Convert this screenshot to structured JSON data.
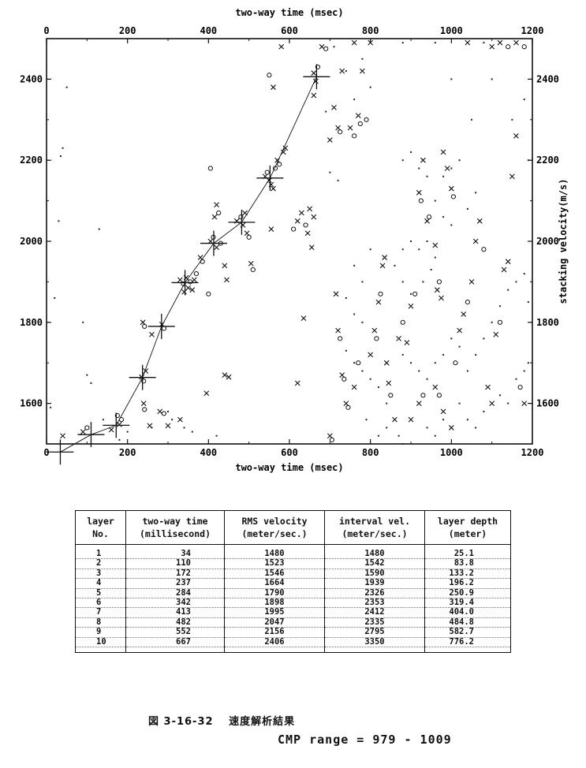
{
  "chart_data": {
    "type": "scatter",
    "xlabel_top": "two-way time (msec)",
    "xlabel_bottom": "two-way time (msec)",
    "ylabel_right": "stacking velocity(m/s)",
    "xlim": [
      0,
      1200
    ],
    "ylim": [
      1500,
      2500
    ],
    "xticks": [
      "0",
      "200",
      "400",
      "600",
      "800",
      "1000",
      "1200"
    ],
    "yticks_left": [
      "1600",
      "1800",
      "2000",
      "2200",
      "2400"
    ],
    "yticks_right": [
      "1600",
      "1800",
      "2000",
      "2200",
      "2400"
    ],
    "picks": {
      "x": [
        34,
        110,
        172,
        237,
        284,
        342,
        413,
        482,
        552,
        667
      ],
      "y": [
        1480,
        1523,
        1546,
        1664,
        1790,
        1898,
        1995,
        2047,
        2156,
        2406
      ]
    },
    "peaks": [
      {
        "x": 180,
        "y": 1548,
        "m": "x"
      },
      {
        "x": 175,
        "y": 1570,
        "m": "o"
      },
      {
        "x": 160,
        "y": 1535,
        "m": "x"
      },
      {
        "x": 185,
        "y": 1560,
        "m": "o"
      },
      {
        "x": 235,
        "y": 1665,
        "m": "x"
      },
      {
        "x": 240,
        "y": 1655,
        "m": "o"
      },
      {
        "x": 245,
        "y": 1680,
        "m": "x"
      },
      {
        "x": 240,
        "y": 1600,
        "m": "x"
      },
      {
        "x": 242,
        "y": 1585,
        "m": "o"
      },
      {
        "x": 255,
        "y": 1545,
        "m": "x"
      },
      {
        "x": 238,
        "y": 1800,
        "m": "x"
      },
      {
        "x": 242,
        "y": 1790,
        "m": "o"
      },
      {
        "x": 260,
        "y": 1770,
        "m": "x"
      },
      {
        "x": 285,
        "y": 1795,
        "m": "x"
      },
      {
        "x": 290,
        "y": 1785,
        "m": "o"
      },
      {
        "x": 280,
        "y": 1580,
        "m": "x"
      },
      {
        "x": 290,
        "y": 1575,
        "m": "o"
      },
      {
        "x": 300,
        "y": 1545,
        "m": "x"
      },
      {
        "x": 330,
        "y": 1905,
        "m": "x"
      },
      {
        "x": 338,
        "y": 1895,
        "m": "o"
      },
      {
        "x": 345,
        "y": 1910,
        "m": "x"
      },
      {
        "x": 350,
        "y": 1885,
        "m": "x"
      },
      {
        "x": 355,
        "y": 1900,
        "m": "o"
      },
      {
        "x": 365,
        "y": 1905,
        "m": "x"
      },
      {
        "x": 370,
        "y": 1920,
        "m": "o"
      },
      {
        "x": 380,
        "y": 1960,
        "m": "x"
      },
      {
        "x": 385,
        "y": 1950,
        "m": "o"
      },
      {
        "x": 340,
        "y": 1875,
        "m": "x"
      },
      {
        "x": 360,
        "y": 1880,
        "m": "x"
      },
      {
        "x": 400,
        "y": 1870,
        "m": "o"
      },
      {
        "x": 330,
        "y": 1560,
        "m": "x"
      },
      {
        "x": 405,
        "y": 2000,
        "m": "x"
      },
      {
        "x": 412,
        "y": 2010,
        "m": "o"
      },
      {
        "x": 420,
        "y": 1985,
        "m": "x"
      },
      {
        "x": 415,
        "y": 2060,
        "m": "x"
      },
      {
        "x": 420,
        "y": 2090,
        "m": "x"
      },
      {
        "x": 425,
        "y": 2070,
        "m": "o"
      },
      {
        "x": 430,
        "y": 1995,
        "m": "o"
      },
      {
        "x": 440,
        "y": 1940,
        "m": "x"
      },
      {
        "x": 445,
        "y": 1905,
        "m": "x"
      },
      {
        "x": 405,
        "y": 2180,
        "m": "o"
      },
      {
        "x": 440,
        "y": 1670,
        "m": "x"
      },
      {
        "x": 450,
        "y": 1665,
        "m": "x"
      },
      {
        "x": 395,
        "y": 1625,
        "m": "x"
      },
      {
        "x": 470,
        "y": 2050,
        "m": "x"
      },
      {
        "x": 480,
        "y": 2060,
        "m": "o"
      },
      {
        "x": 485,
        "y": 2040,
        "m": "x"
      },
      {
        "x": 490,
        "y": 2070,
        "m": "x"
      },
      {
        "x": 495,
        "y": 2020,
        "m": "x"
      },
      {
        "x": 500,
        "y": 2010,
        "m": "o"
      },
      {
        "x": 505,
        "y": 1945,
        "m": "x"
      },
      {
        "x": 510,
        "y": 1930,
        "m": "o"
      },
      {
        "x": 540,
        "y": 2160,
        "m": "x"
      },
      {
        "x": 545,
        "y": 2170,
        "m": "o"
      },
      {
        "x": 550,
        "y": 2150,
        "m": "x"
      },
      {
        "x": 555,
        "y": 2140,
        "m": "x"
      },
      {
        "x": 560,
        "y": 2130,
        "m": "x"
      },
      {
        "x": 565,
        "y": 2180,
        "m": "o"
      },
      {
        "x": 570,
        "y": 2200,
        "m": "x"
      },
      {
        "x": 575,
        "y": 2190,
        "m": "o"
      },
      {
        "x": 585,
        "y": 2220,
        "m": "x"
      },
      {
        "x": 590,
        "y": 2230,
        "m": "x"
      },
      {
        "x": 550,
        "y": 2410,
        "m": "o"
      },
      {
        "x": 560,
        "y": 2380,
        "m": "x"
      },
      {
        "x": 580,
        "y": 2480,
        "m": "x"
      },
      {
        "x": 555,
        "y": 2030,
        "m": "x"
      },
      {
        "x": 620,
        "y": 2050,
        "m": "x"
      },
      {
        "x": 630,
        "y": 2070,
        "m": "x"
      },
      {
        "x": 640,
        "y": 2040,
        "m": "o"
      },
      {
        "x": 650,
        "y": 2080,
        "m": "x"
      },
      {
        "x": 660,
        "y": 2060,
        "m": "x"
      },
      {
        "x": 655,
        "y": 1985,
        "m": "x"
      },
      {
        "x": 645,
        "y": 2020,
        "m": "x"
      },
      {
        "x": 610,
        "y": 2030,
        "m": "o"
      },
      {
        "x": 660,
        "y": 2415,
        "m": "x"
      },
      {
        "x": 670,
        "y": 2430,
        "m": "o"
      },
      {
        "x": 665,
        "y": 2395,
        "m": "x"
      },
      {
        "x": 680,
        "y": 2480,
        "m": "x"
      },
      {
        "x": 690,
        "y": 2475,
        "m": "o"
      },
      {
        "x": 660,
        "y": 2360,
        "m": "x"
      },
      {
        "x": 710,
        "y": 2330,
        "m": "x"
      },
      {
        "x": 720,
        "y": 2280,
        "m": "x"
      },
      {
        "x": 725,
        "y": 2270,
        "m": "o"
      },
      {
        "x": 730,
        "y": 2420,
        "m": "x"
      },
      {
        "x": 760,
        "y": 2490,
        "m": "x"
      },
      {
        "x": 780,
        "y": 2420,
        "m": "x"
      },
      {
        "x": 790,
        "y": 2300,
        "m": "o"
      },
      {
        "x": 800,
        "y": 2490,
        "m": "x"
      },
      {
        "x": 700,
        "y": 2250,
        "m": "x"
      },
      {
        "x": 770,
        "y": 2310,
        "m": "x"
      },
      {
        "x": 775,
        "y": 2290,
        "m": "o"
      },
      {
        "x": 750,
        "y": 2280,
        "m": "x"
      },
      {
        "x": 760,
        "y": 2260,
        "m": "o"
      },
      {
        "x": 620,
        "y": 1650,
        "m": "x"
      },
      {
        "x": 635,
        "y": 1810,
        "m": "x"
      },
      {
        "x": 715,
        "y": 1870,
        "m": "x"
      },
      {
        "x": 720,
        "y": 1780,
        "m": "x"
      },
      {
        "x": 725,
        "y": 1760,
        "m": "o"
      },
      {
        "x": 730,
        "y": 1670,
        "m": "x"
      },
      {
        "x": 735,
        "y": 1660,
        "m": "o"
      },
      {
        "x": 740,
        "y": 1600,
        "m": "x"
      },
      {
        "x": 745,
        "y": 1590,
        "m": "o"
      },
      {
        "x": 700,
        "y": 1520,
        "m": "x"
      },
      {
        "x": 705,
        "y": 1510,
        "m": "o"
      },
      {
        "x": 760,
        "y": 1640,
        "m": "x"
      },
      {
        "x": 770,
        "y": 1700,
        "m": "o"
      },
      {
        "x": 800,
        "y": 1720,
        "m": "x"
      },
      {
        "x": 810,
        "y": 1780,
        "m": "x"
      },
      {
        "x": 815,
        "y": 1760,
        "m": "o"
      },
      {
        "x": 820,
        "y": 1850,
        "m": "x"
      },
      {
        "x": 825,
        "y": 1870,
        "m": "o"
      },
      {
        "x": 830,
        "y": 1940,
        "m": "x"
      },
      {
        "x": 835,
        "y": 1960,
        "m": "x"
      },
      {
        "x": 840,
        "y": 1700,
        "m": "x"
      },
      {
        "x": 845,
        "y": 1650,
        "m": "x"
      },
      {
        "x": 850,
        "y": 1620,
        "m": "o"
      },
      {
        "x": 860,
        "y": 1560,
        "m": "x"
      },
      {
        "x": 870,
        "y": 1760,
        "m": "x"
      },
      {
        "x": 880,
        "y": 1800,
        "m": "o"
      },
      {
        "x": 890,
        "y": 1750,
        "m": "x"
      },
      {
        "x": 900,
        "y": 1840,
        "m": "x"
      },
      {
        "x": 910,
        "y": 1870,
        "m": "o"
      },
      {
        "x": 900,
        "y": 1560,
        "m": "x"
      },
      {
        "x": 920,
        "y": 1600,
        "m": "x"
      },
      {
        "x": 930,
        "y": 1620,
        "m": "o"
      },
      {
        "x": 920,
        "y": 2120,
        "m": "x"
      },
      {
        "x": 925,
        "y": 2100,
        "m": "o"
      },
      {
        "x": 930,
        "y": 2200,
        "m": "x"
      },
      {
        "x": 940,
        "y": 2050,
        "m": "x"
      },
      {
        "x": 945,
        "y": 2060,
        "m": "o"
      },
      {
        "x": 960,
        "y": 1990,
        "m": "x"
      },
      {
        "x": 965,
        "y": 1880,
        "m": "x"
      },
      {
        "x": 970,
        "y": 1900,
        "m": "o"
      },
      {
        "x": 975,
        "y": 1860,
        "m": "x"
      },
      {
        "x": 980,
        "y": 2220,
        "m": "x"
      },
      {
        "x": 990,
        "y": 2180,
        "m": "x"
      },
      {
        "x": 1000,
        "y": 2130,
        "m": "x"
      },
      {
        "x": 1005,
        "y": 2110,
        "m": "o"
      },
      {
        "x": 960,
        "y": 1640,
        "m": "x"
      },
      {
        "x": 970,
        "y": 1620,
        "m": "o"
      },
      {
        "x": 980,
        "y": 1580,
        "m": "x"
      },
      {
        "x": 1000,
        "y": 1540,
        "m": "x"
      },
      {
        "x": 1010,
        "y": 1700,
        "m": "o"
      },
      {
        "x": 1020,
        "y": 1780,
        "m": "x"
      },
      {
        "x": 1030,
        "y": 1820,
        "m": "x"
      },
      {
        "x": 1040,
        "y": 1850,
        "m": "o"
      },
      {
        "x": 1050,
        "y": 1900,
        "m": "x"
      },
      {
        "x": 1060,
        "y": 2000,
        "m": "x"
      },
      {
        "x": 1070,
        "y": 2050,
        "m": "x"
      },
      {
        "x": 1080,
        "y": 1980,
        "m": "o"
      },
      {
        "x": 1090,
        "y": 1640,
        "m": "x"
      },
      {
        "x": 1100,
        "y": 1600,
        "m": "x"
      },
      {
        "x": 1110,
        "y": 1770,
        "m": "x"
      },
      {
        "x": 1120,
        "y": 1800,
        "m": "o"
      },
      {
        "x": 1130,
        "y": 1930,
        "m": "x"
      },
      {
        "x": 1140,
        "y": 1950,
        "m": "x"
      },
      {
        "x": 1150,
        "y": 2160,
        "m": "x"
      },
      {
        "x": 1160,
        "y": 2260,
        "m": "x"
      },
      {
        "x": 1170,
        "y": 1640,
        "m": "o"
      },
      {
        "x": 1180,
        "y": 1600,
        "m": "x"
      },
      {
        "x": 1100,
        "y": 2480,
        "m": "x"
      },
      {
        "x": 1120,
        "y": 2490,
        "m": "x"
      },
      {
        "x": 1140,
        "y": 2480,
        "m": "o"
      },
      {
        "x": 1160,
        "y": 2490,
        "m": "x"
      },
      {
        "x": 1180,
        "y": 2480,
        "m": "o"
      },
      {
        "x": 1040,
        "y": 2490,
        "m": "x"
      },
      {
        "x": 40,
        "y": 1520,
        "m": "x"
      },
      {
        "x": 90,
        "y": 1530,
        "m": "x"
      },
      {
        "x": 100,
        "y": 1540,
        "m": "o"
      }
    ],
    "dots": [
      [
        40,
        2230
      ],
      [
        35,
        2210
      ],
      [
        30,
        2050
      ],
      [
        50,
        2380
      ],
      [
        130,
        2030
      ],
      [
        90,
        1800
      ],
      [
        100,
        1670
      ],
      [
        110,
        1650
      ],
      [
        20,
        1860
      ],
      [
        10,
        1590
      ],
      [
        140,
        1560
      ],
      [
        300,
        1580
      ],
      [
        310,
        1560
      ],
      [
        340,
        1540
      ],
      [
        360,
        1530
      ],
      [
        420,
        1520
      ],
      [
        200,
        1530
      ],
      [
        180,
        1510
      ],
      [
        260,
        1540
      ],
      [
        710,
        2480
      ],
      [
        740,
        2420
      ],
      [
        780,
        2450
      ],
      [
        800,
        2380
      ],
      [
        760,
        2350
      ],
      [
        690,
        2320
      ],
      [
        720,
        2150
      ],
      [
        700,
        2170
      ],
      [
        760,
        1940
      ],
      [
        780,
        1900
      ],
      [
        800,
        1980
      ],
      [
        760,
        1820
      ],
      [
        780,
        1800
      ],
      [
        740,
        1860
      ],
      [
        740,
        1730
      ],
      [
        760,
        1700
      ],
      [
        780,
        1680
      ],
      [
        800,
        1660
      ],
      [
        820,
        1640
      ],
      [
        840,
        1600
      ],
      [
        790,
        1560
      ],
      [
        820,
        1520
      ],
      [
        840,
        1540
      ],
      [
        880,
        1500
      ],
      [
        870,
        1520
      ],
      [
        860,
        1940
      ],
      [
        880,
        1980
      ],
      [
        900,
        2000
      ],
      [
        920,
        1980
      ],
      [
        940,
        2000
      ],
      [
        880,
        1900
      ],
      [
        900,
        1870
      ],
      [
        930,
        1900
      ],
      [
        950,
        1930
      ],
      [
        960,
        1960
      ],
      [
        880,
        2200
      ],
      [
        900,
        2220
      ],
      [
        920,
        2180
      ],
      [
        940,
        2160
      ],
      [
        960,
        2100
      ],
      [
        980,
        2160
      ],
      [
        1000,
        2180
      ],
      [
        1020,
        2200
      ],
      [
        980,
        2060
      ],
      [
        1000,
        2040
      ],
      [
        1040,
        2080
      ],
      [
        1060,
        2120
      ],
      [
        880,
        1720
      ],
      [
        900,
        1700
      ],
      [
        920,
        1680
      ],
      [
        940,
        1660
      ],
      [
        960,
        1700
      ],
      [
        980,
        1720
      ],
      [
        1000,
        1760
      ],
      [
        1020,
        1740
      ],
      [
        1040,
        1680
      ],
      [
        1060,
        1720
      ],
      [
        1080,
        1760
      ],
      [
        1100,
        1800
      ],
      [
        1120,
        1840
      ],
      [
        1140,
        1880
      ],
      [
        1160,
        1900
      ],
      [
        1180,
        1920
      ],
      [
        1190,
        1850
      ],
      [
        940,
        1540
      ],
      [
        960,
        1520
      ],
      [
        980,
        1560
      ],
      [
        1020,
        1600
      ],
      [
        1040,
        1560
      ],
      [
        1060,
        1540
      ],
      [
        1080,
        1580
      ],
      [
        1120,
        1620
      ],
      [
        1140,
        1600
      ],
      [
        1160,
        1660
      ],
      [
        1180,
        1680
      ],
      [
        1190,
        1700
      ],
      [
        1000,
        2400
      ],
      [
        1050,
        2300
      ],
      [
        1100,
        2400
      ],
      [
        1150,
        2300
      ],
      [
        1190,
        2200
      ],
      [
        1180,
        2350
      ],
      [
        1080,
        2490
      ],
      [
        960,
        2490
      ],
      [
        880,
        2490
      ]
    ]
  },
  "table": {
    "headers": [
      {
        "l1": "layer",
        "l2": "No."
      },
      {
        "l1": "two-way time",
        "l2": "(millisecond)"
      },
      {
        "l1": "RMS velocity",
        "l2": "(meter/sec.)"
      },
      {
        "l1": "interval vel.",
        "l2": "(meter/sec.)"
      },
      {
        "l1": "layer depth",
        "l2": "(meter)"
      }
    ],
    "rows": [
      [
        "1",
        "34",
        "1480",
        "1480",
        "25.1"
      ],
      [
        "2",
        "110",
        "1523",
        "1542",
        "83.8"
      ],
      [
        "3",
        "172",
        "1546",
        "1590",
        "133.2"
      ],
      [
        "4",
        "237",
        "1664",
        "1939",
        "196.2"
      ],
      [
        "5",
        "284",
        "1790",
        "2326",
        "250.9"
      ],
      [
        "6",
        "342",
        "1898",
        "2353",
        "319.4"
      ],
      [
        "7",
        "413",
        "1995",
        "2412",
        "404.0"
      ],
      [
        "8",
        "482",
        "2047",
        "2335",
        "484.8"
      ],
      [
        "9",
        "552",
        "2156",
        "2795",
        "582.7"
      ],
      [
        "10",
        "667",
        "2406",
        "3350",
        "776.2"
      ]
    ]
  },
  "caption": "図 3-16-32　 速度解析結果",
  "cmp_range": "CMP range =  979 - 1009"
}
